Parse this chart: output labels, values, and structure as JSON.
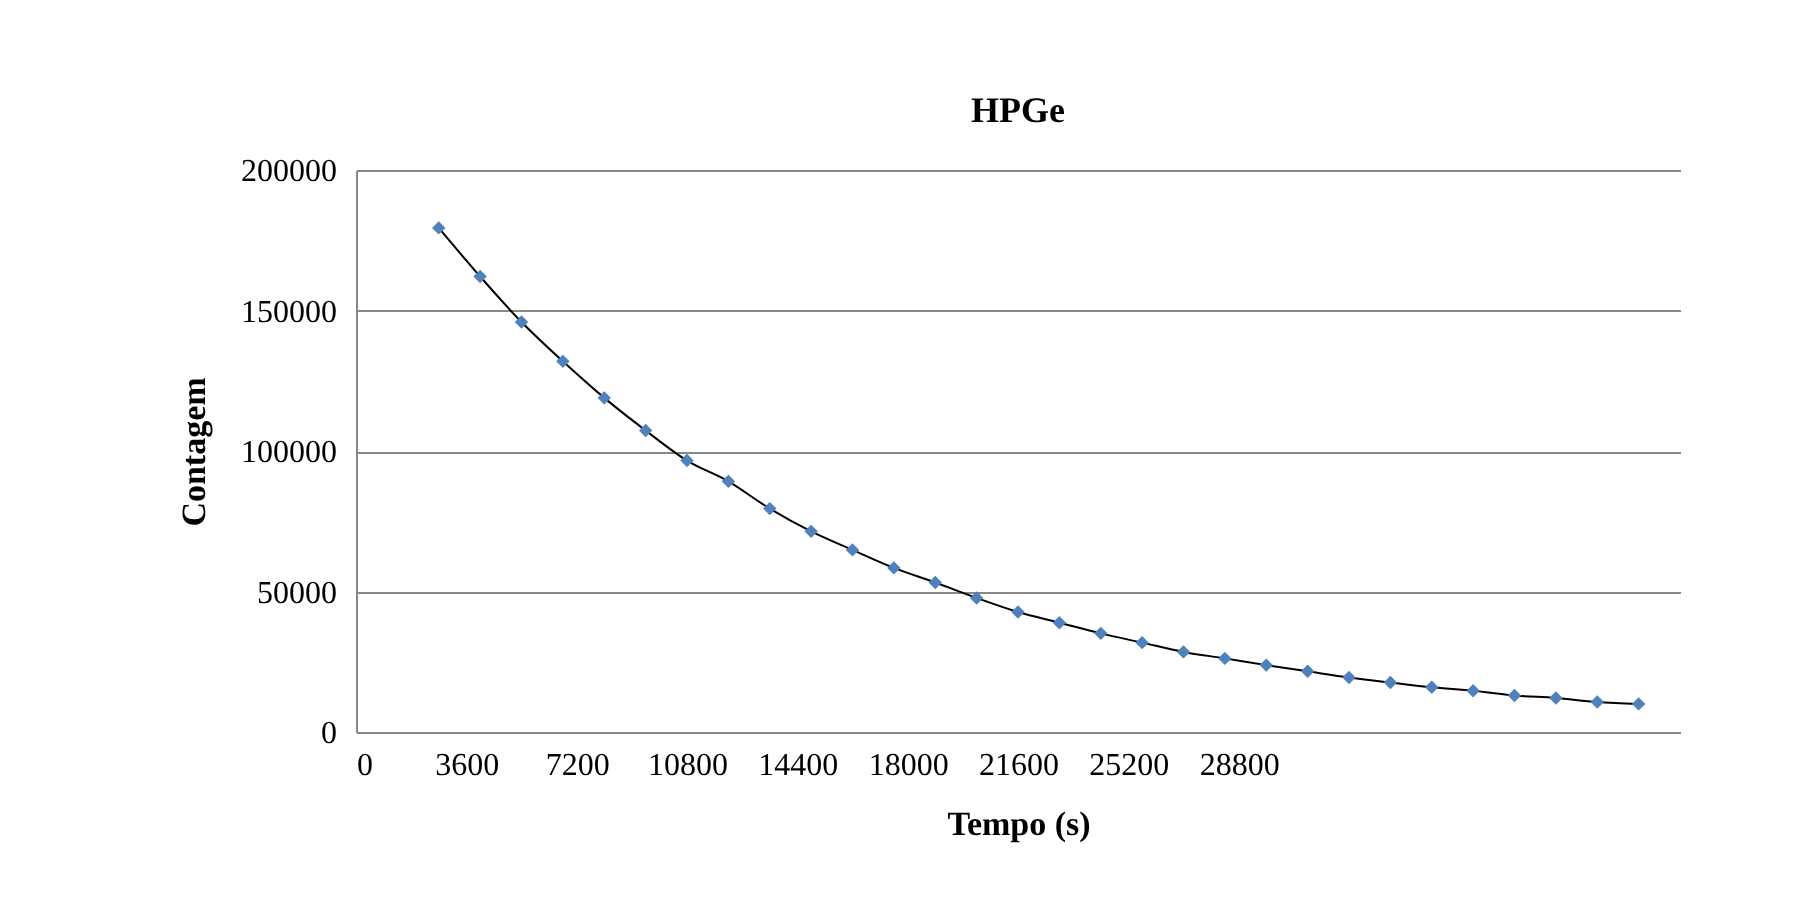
{
  "chart_data": {
    "type": "line",
    "title": "HPGe",
    "xlabel": "Tempo (s)",
    "ylabel": "Contagem",
    "x": [
      2700,
      4050,
      5400,
      6750,
      8100,
      9450,
      10800,
      12150,
      13500,
      14850,
      16200,
      17550,
      18900,
      20250,
      21600,
      22950,
      24300,
      25650,
      27000,
      28350,
      29700,
      31050,
      32400,
      33750,
      35100,
      36450,
      37800,
      39150,
      40500,
      41850
    ],
    "series": [
      {
        "color": "#4f81bd",
        "values": [
          179400,
          162100,
          145900,
          131900,
          118900,
          107300,
          96600,
          89200,
          79500,
          71400,
          64800,
          58400,
          53200,
          47700,
          42700,
          38900,
          35100,
          31800,
          28500,
          26200,
          23800,
          21600,
          19400,
          17600,
          15900,
          14700,
          13000,
          12100,
          10700,
          10000
        ]
      }
    ],
    "xlim": [
      0,
      43200
    ],
    "xticks": [
      0,
      3600,
      7200,
      10800,
      14400,
      18000,
      21600,
      25200,
      28800
    ],
    "ylim": [
      0,
      200000
    ],
    "yticks": [
      0,
      50000,
      100000,
      150000,
      200000
    ],
    "grid": "y",
    "marker": "diamond",
    "line_style": "solid"
  }
}
